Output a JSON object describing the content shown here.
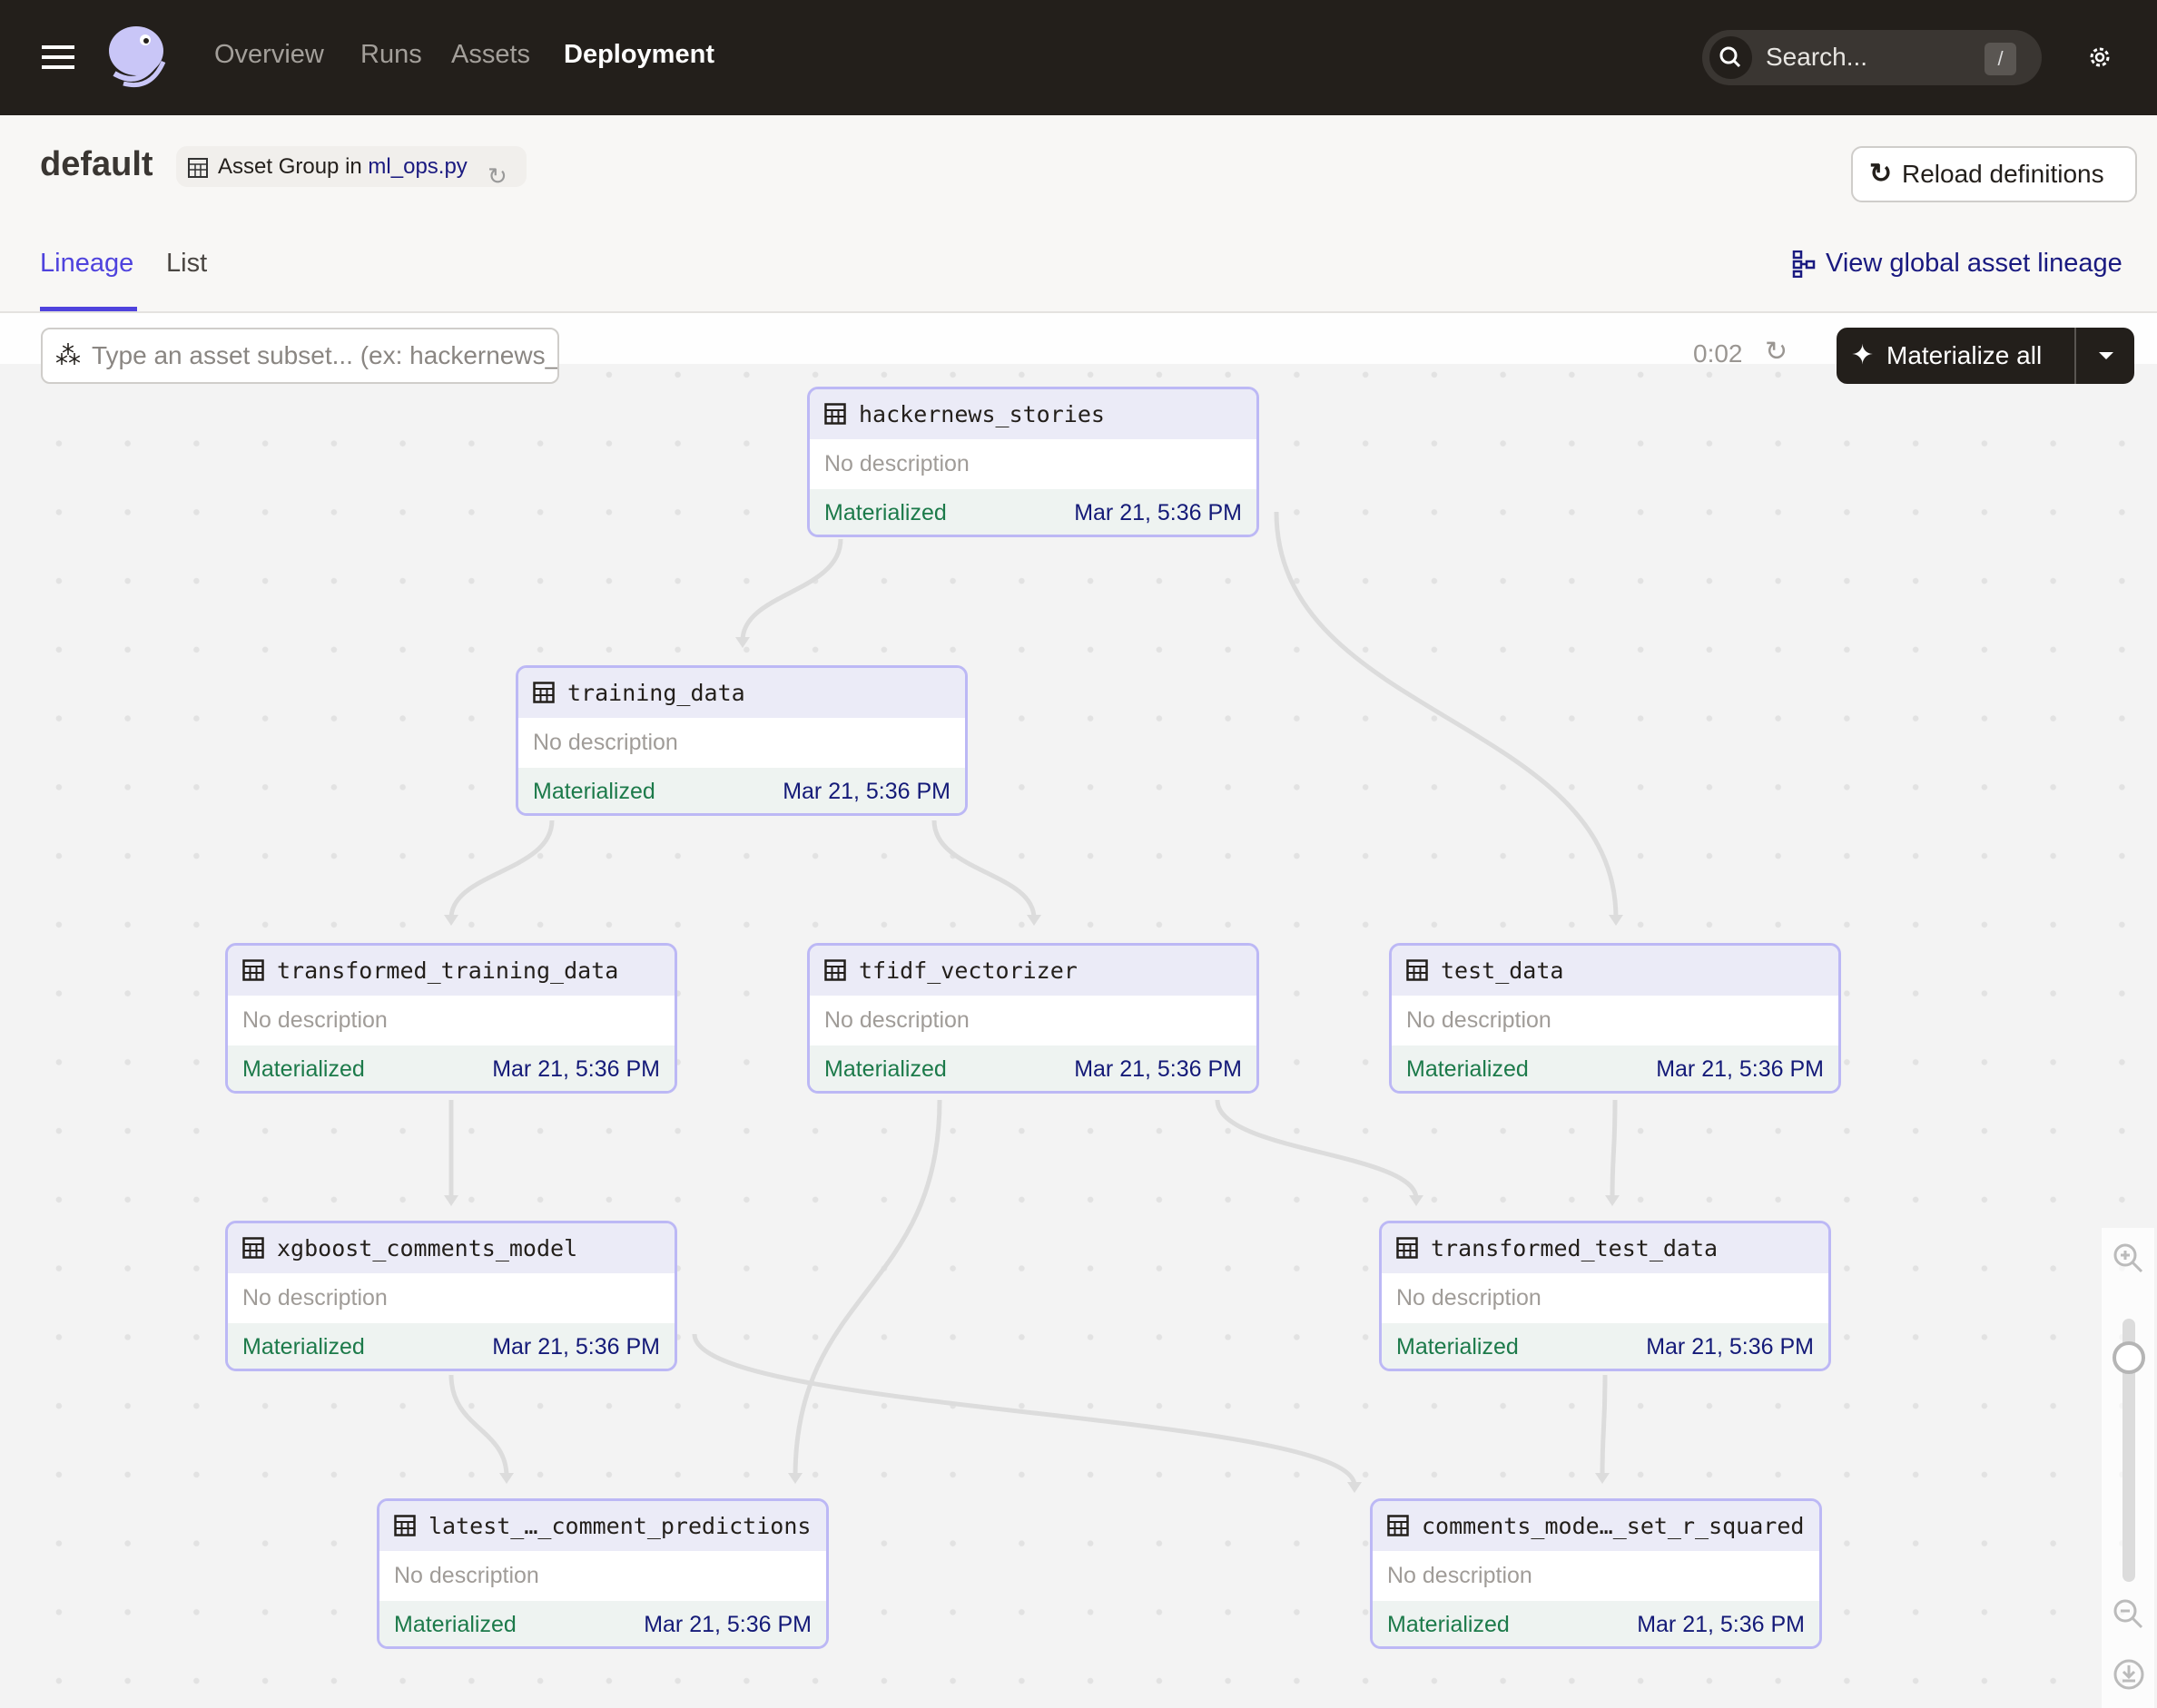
{
  "nav": {
    "items": [
      {
        "label": "Overview",
        "active": false
      },
      {
        "label": "Runs",
        "active": false
      },
      {
        "label": "Assets",
        "active": false
      },
      {
        "label": "Deployment",
        "active": true
      }
    ],
    "search_placeholder": "Search...",
    "search_shortcut": "/"
  },
  "header": {
    "title": "default",
    "badge_prefix": "Asset Group in",
    "badge_file": "ml_ops.py",
    "reload_label": "Reload definitions"
  },
  "tabs": [
    {
      "label": "Lineage",
      "active": true
    },
    {
      "label": "List",
      "active": false
    }
  ],
  "global_lineage_label": "View global asset lineage",
  "toolbar": {
    "filter_placeholder": "Type an asset subset... (ex: hackernews_stories+)",
    "timer": "0:02",
    "materialize_label": "Materialize all"
  },
  "colors": {
    "accent": "#4f43dd",
    "node_border": "#bcb8f5",
    "materialized": "#1c7a4a",
    "timestamp": "#141a78",
    "topbar": "#231f1b"
  },
  "nodes": [
    {
      "name": "hackernews_stories",
      "description": "No description",
      "status": "Materialized",
      "timestamp": "Mar 21, 5:36 PM"
    },
    {
      "name": "training_data",
      "description": "No description",
      "status": "Materialized",
      "timestamp": "Mar 21, 5:36 PM"
    },
    {
      "name": "transformed_training_data",
      "description": "No description",
      "status": "Materialized",
      "timestamp": "Mar 21, 5:36 PM"
    },
    {
      "name": "tfidf_vectorizer",
      "description": "No description",
      "status": "Materialized",
      "timestamp": "Mar 21, 5:36 PM"
    },
    {
      "name": "test_data",
      "description": "No description",
      "status": "Materialized",
      "timestamp": "Mar 21, 5:36 PM"
    },
    {
      "name": "xgboost_comments_model",
      "description": "No description",
      "status": "Materialized",
      "timestamp": "Mar 21, 5:36 PM"
    },
    {
      "name": "transformed_test_data",
      "description": "No description",
      "status": "Materialized",
      "timestamp": "Mar 21, 5:36 PM"
    },
    {
      "name": "latest_…_comment_predictions",
      "description": "No description",
      "status": "Materialized",
      "timestamp": "Mar 21, 5:36 PM"
    },
    {
      "name": "comments_mode…_set_r_squared",
      "description": "No description",
      "status": "Materialized",
      "timestamp": "Mar 21, 5:36 PM"
    }
  ],
  "edges": [
    [
      "hackernews_stories",
      "training_data"
    ],
    [
      "hackernews_stories",
      "test_data"
    ],
    [
      "training_data",
      "transformed_training_data"
    ],
    [
      "training_data",
      "tfidf_vectorizer"
    ],
    [
      "transformed_training_data",
      "xgboost_comments_model"
    ],
    [
      "tfidf_vectorizer",
      "latest_…_comment_predictions"
    ],
    [
      "tfidf_vectorizer",
      "transformed_test_data"
    ],
    [
      "test_data",
      "transformed_test_data"
    ],
    [
      "xgboost_comments_model",
      "latest_…_comment_predictions"
    ],
    [
      "xgboost_comments_model",
      "comments_mode…_set_r_squared"
    ],
    [
      "transformed_test_data",
      "comments_mode…_set_r_squared"
    ]
  ],
  "zoom_level": 0.1
}
